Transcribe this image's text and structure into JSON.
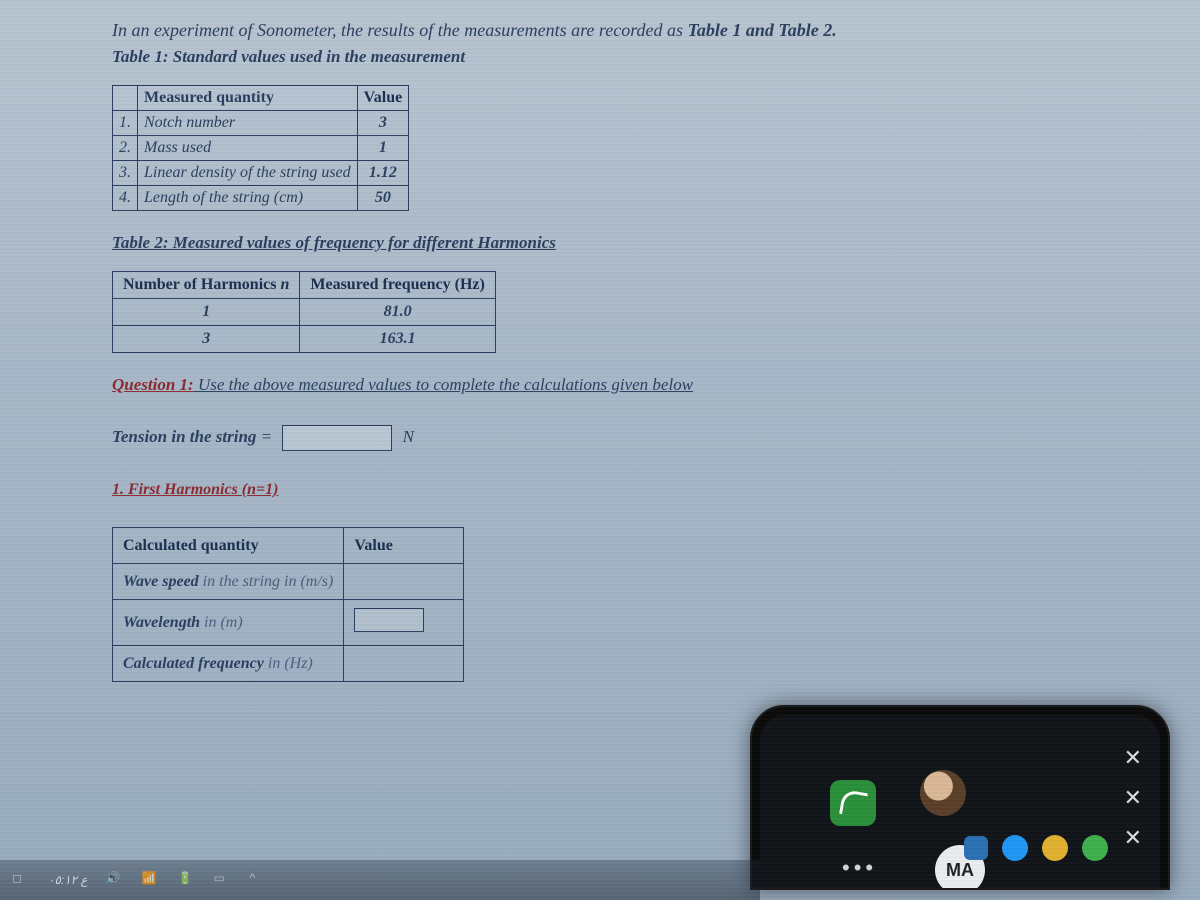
{
  "intro_prefix": "In an experiment of Sonometer, the results of the measurements are recorded as ",
  "intro_bold": "Table 1 and Table 2.",
  "table1_caption": "Table 1: Standard values used in the measurement",
  "t1": {
    "head_qty": "Measured quantity",
    "head_val": "Value",
    "rows": [
      {
        "n": "1.",
        "qty": "Notch number",
        "val": "3"
      },
      {
        "n": "2.",
        "qty": "Mass used",
        "val": "1"
      },
      {
        "n": "3.",
        "qty": "Linear density of the string used",
        "val": "1.12"
      },
      {
        "n": "4.",
        "qty": "Length of the string (cm)",
        "val": "50"
      }
    ]
  },
  "table2_caption": "Table 2: Measured values of frequency for different Harmonics",
  "t2": {
    "head_n_a": "Number of Harmonics ",
    "head_n_b": "n",
    "head_f": "Measured frequency (Hz)",
    "rows": [
      {
        "n": "1",
        "f": "81.0"
      },
      {
        "n": "3",
        "f": "163.1"
      }
    ]
  },
  "q1_label": "Question 1:",
  "q1_text": " Use the above measured values to complete the calculations given below",
  "tension_label": "Tension in the string ",
  "tension_eq": "=",
  "tension_unit": "N",
  "first_harm": "1. First Harmonics (n=1)",
  "t3": {
    "head_qty": "Calculated quantity",
    "head_val": "Value",
    "rows": [
      {
        "main": "Wave speed ",
        "sub": "in the string in (m/s)"
      },
      {
        "main": "Wavelength ",
        "sub": "in (m)"
      },
      {
        "main": "Calculated frequency ",
        "sub": "in (Hz)"
      }
    ]
  },
  "phone": {
    "ma": "MA",
    "dots": "•••"
  },
  "taskbar": {
    "time": "ع ٠٥:١٢"
  },
  "colors": {
    "text": "#2a3f5f",
    "accent_red": "#8a2a30",
    "border": "#2a3f5f",
    "bg_top": "#b8c4d0",
    "bg_bottom": "#98acbf"
  }
}
